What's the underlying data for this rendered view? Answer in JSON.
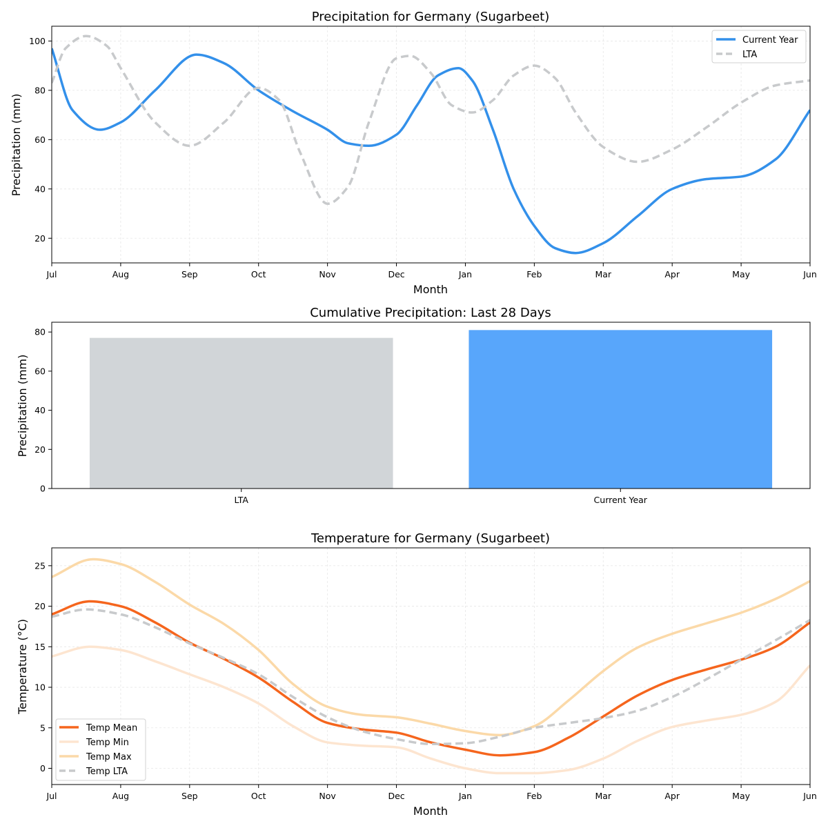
{
  "chart_data": [
    {
      "type": "line",
      "title": "Precipitation for Germany (Sugarbeet)",
      "xlabel": "Month",
      "ylabel": "Precipitation (mm)",
      "xlim": [
        0,
        11
      ],
      "ylim": [
        10,
        106
      ],
      "yticks": [
        20,
        40,
        60,
        80,
        100
      ],
      "x_tick_labels": [
        "Jul",
        "Aug",
        "Sep",
        "Oct",
        "Nov",
        "Dec",
        "Jan",
        "Feb",
        "Mar",
        "Apr",
        "May",
        "Jun"
      ],
      "grid": true,
      "legend_position": "upper right",
      "series": [
        {
          "name": "Current Year",
          "color": "#3390ea",
          "dash": "solid",
          "x": [
            0,
            0.3,
            0.7,
            1.0,
            1.5,
            2.1,
            2.5,
            3.0,
            3.5,
            4.0,
            4.3,
            4.6,
            5.0,
            5.3,
            5.6,
            5.9,
            6.1,
            6.4,
            6.7,
            7.0,
            7.3,
            7.6,
            8.0,
            8.5,
            9.0,
            9.5,
            10.0,
            10.5,
            11.0
          ],
          "y": [
            97,
            72,
            64,
            67,
            80,
            94.5,
            91,
            80,
            71.5,
            64,
            58.5,
            57.5,
            62,
            74,
            86,
            89,
            84,
            64,
            40,
            25,
            16,
            14,
            18,
            29,
            40,
            44,
            45,
            52,
            72
          ]
        },
        {
          "name": "LTA",
          "color": "#c8cacc",
          "dash": "dashed",
          "x": [
            0,
            0.2,
            0.5,
            0.8,
            1.0,
            1.5,
            2.0,
            2.5,
            3.0,
            3.3,
            3.6,
            4.0,
            4.3,
            4.6,
            5.0,
            5.2,
            5.5,
            5.8,
            6.1,
            6.4,
            6.7,
            7.0,
            7.3,
            7.6,
            8.0,
            8.5,
            9.0,
            9.5,
            10.0,
            10.5,
            11.0
          ],
          "y": [
            83,
            97,
            102,
            98,
            89,
            67,
            57.5,
            67,
            81,
            76,
            55,
            34,
            41,
            67,
            93,
            94,
            87,
            74,
            71,
            76,
            86,
            90,
            85,
            71,
            57,
            51,
            56,
            65,
            75,
            82,
            84
          ]
        }
      ]
    },
    {
      "type": "bar",
      "title": "Cumulative Precipitation: Last 28 Days",
      "xlabel": "",
      "ylabel": "Precipitation (mm)",
      "categories": [
        "LTA",
        "Current Year"
      ],
      "values": [
        77,
        81
      ],
      "colors": [
        "#d1d5d8",
        "#58a6fb"
      ],
      "ylim": [
        0,
        85
      ],
      "yticks": [
        0,
        20,
        40,
        60,
        80
      ]
    },
    {
      "type": "line",
      "title": "Temperature for Germany (Sugarbeet)",
      "xlabel": "Month",
      "ylabel": "Temperature (°C)",
      "xlim": [
        0,
        11
      ],
      "ylim": [
        -2,
        27.2
      ],
      "yticks": [
        0,
        5,
        10,
        15,
        20,
        25
      ],
      "x_tick_labels": [
        "Jul",
        "Aug",
        "Sep",
        "Oct",
        "Nov",
        "Dec",
        "Jan",
        "Feb",
        "Mar",
        "Apr",
        "May",
        "Jun"
      ],
      "grid": true,
      "legend_position": "lower left",
      "series": [
        {
          "name": "Temp Mean",
          "color": "#f5651d",
          "dash": "solid",
          "width": 3.5,
          "x": [
            0,
            0.55,
            1.0,
            1.5,
            2.0,
            2.5,
            3.0,
            3.5,
            4.0,
            4.5,
            5.0,
            5.5,
            6.0,
            6.5,
            7.0,
            7.5,
            8.0,
            8.5,
            9.0,
            9.5,
            10.0,
            10.5,
            11.0
          ],
          "y": [
            19,
            20.6,
            20,
            18,
            15.5,
            13.5,
            11.2,
            8.2,
            5.6,
            4.8,
            4.4,
            3.2,
            2.3,
            1.6,
            2.0,
            3.8,
            6.4,
            9.0,
            10.9,
            12.2,
            13.4,
            15.0,
            18.0
          ]
        },
        {
          "name": "Temp Min",
          "color": "#fde5d0",
          "dash": "solid",
          "width": 3.5,
          "x": [
            0,
            0.55,
            1.0,
            1.5,
            2.0,
            2.5,
            3.0,
            3.5,
            4.0,
            4.5,
            5.0,
            5.5,
            6.0,
            6.5,
            7.0,
            7.5,
            8.0,
            8.5,
            9.0,
            9.5,
            10.0,
            10.5,
            11.0
          ],
          "y": [
            13.8,
            15.0,
            14.6,
            13.2,
            11.6,
            10.0,
            8.0,
            5.2,
            3.2,
            2.8,
            2.6,
            1.2,
            0.0,
            -0.6,
            -0.6,
            -0.2,
            1.2,
            3.4,
            5.1,
            5.9,
            6.6,
            8.2,
            12.7
          ]
        },
        {
          "name": "Temp Max",
          "color": "#fbd9a8",
          "dash": "solid",
          "width": 3.5,
          "x": [
            0,
            0.6,
            1.0,
            1.5,
            2.0,
            2.5,
            3.0,
            3.5,
            4.0,
            4.5,
            5.0,
            5.5,
            6.0,
            6.5,
            7.0,
            7.5,
            8.0,
            8.5,
            9.0,
            9.5,
            10.0,
            10.5,
            11.0
          ],
          "y": [
            23.6,
            25.8,
            25.2,
            23.0,
            20.2,
            17.8,
            14.6,
            10.4,
            7.6,
            6.6,
            6.3,
            5.5,
            4.6,
            4.1,
            5.2,
            8.4,
            12.0,
            14.9,
            16.6,
            17.9,
            19.2,
            20.9,
            23.1
          ]
        },
        {
          "name": "Temp LTA",
          "color": "#c8cacc",
          "dash": "dashed",
          "width": 3.5,
          "x": [
            0,
            0.5,
            1.0,
            1.5,
            2.0,
            2.5,
            3.0,
            3.5,
            4.0,
            4.5,
            5.0,
            5.5,
            6.0,
            6.5,
            7.0,
            7.5,
            8.0,
            8.5,
            9.0,
            9.5,
            10.0,
            10.5,
            11.0
          ],
          "y": [
            18.7,
            19.6,
            19.0,
            17.4,
            15.4,
            13.6,
            11.6,
            8.8,
            6.3,
            4.6,
            3.6,
            3.0,
            3.1,
            3.9,
            5.0,
            5.6,
            6.2,
            7.1,
            8.8,
            11.0,
            13.4,
            15.8,
            18.3
          ]
        }
      ]
    }
  ]
}
